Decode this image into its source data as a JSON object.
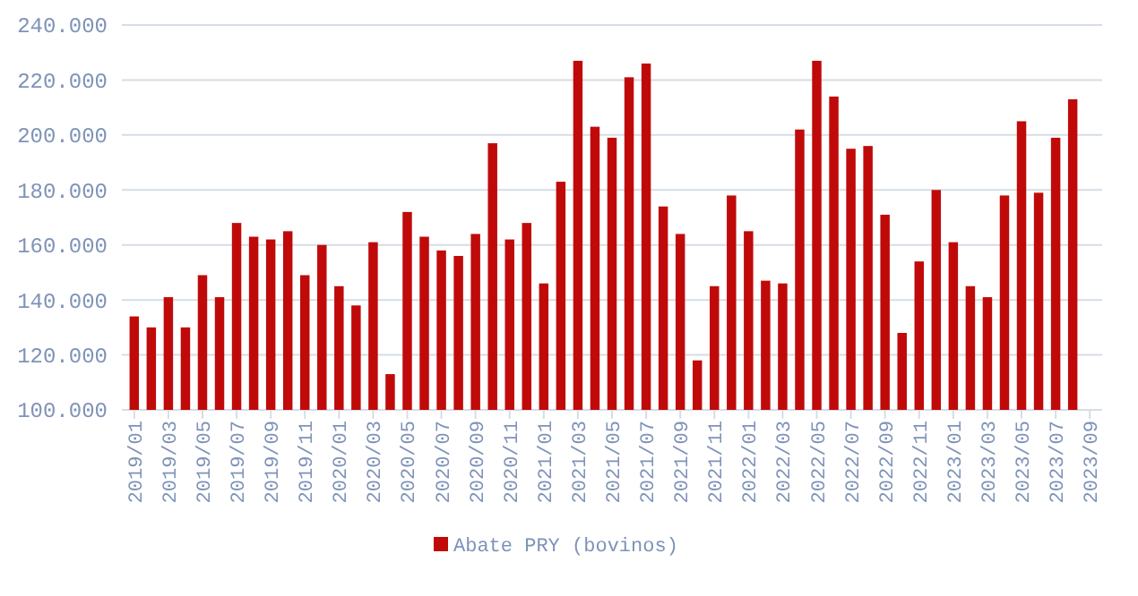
{
  "chart_data": {
    "type": "bar",
    "categories": [
      "2019/01",
      null,
      "2019/03",
      null,
      "2019/05",
      null,
      "2019/07",
      null,
      "2019/09",
      null,
      "2019/11",
      null,
      "2020/01",
      null,
      "2020/03",
      null,
      "2020/05",
      null,
      "2020/07",
      null,
      "2020/09",
      null,
      "2020/11",
      null,
      "2021/01",
      null,
      "2021/03",
      null,
      "2021/05",
      null,
      "2021/07",
      null,
      "2021/09",
      null,
      "2021/11",
      null,
      "2022/01",
      null,
      "2022/03",
      null,
      "2022/05",
      null,
      "2022/07",
      null,
      "2022/09",
      null,
      "2022/11",
      null,
      "2023/01",
      null,
      "2023/03",
      null,
      "2023/05",
      null,
      "2023/07",
      null,
      "2023/09"
    ],
    "series": [
      {
        "name": "Abate PRY (bovinos)",
        "color": "#c00a0a",
        "values": [
          134000,
          130000,
          141000,
          130000,
          149000,
          141000,
          168000,
          163000,
          162000,
          165000,
          149000,
          160000,
          145000,
          138000,
          161000,
          113000,
          172000,
          163000,
          158000,
          156000,
          164000,
          197000,
          162000,
          168000,
          146000,
          183000,
          227000,
          203000,
          199000,
          221000,
          226000,
          174000,
          164000,
          118000,
          145000,
          178000,
          165000,
          147000,
          146000,
          202000,
          227000,
          214000,
          195000,
          196000,
          171000,
          128000,
          154000,
          180000,
          161000,
          145000,
          141000,
          178000,
          205000,
          179000,
          199000,
          213000,
          null
        ]
      }
    ],
    "ylim": [
      100000,
      240000
    ],
    "yticks": [
      {
        "value": 100000,
        "label": "100.000"
      },
      {
        "value": 120000,
        "label": "120.000"
      },
      {
        "value": 140000,
        "label": "140.000"
      },
      {
        "value": 160000,
        "label": "160.000"
      },
      {
        "value": 180000,
        "label": "180.000"
      },
      {
        "value": 200000,
        "label": "200.000"
      },
      {
        "value": 220000,
        "label": "220.000"
      },
      {
        "value": 240000,
        "label": "240.000"
      }
    ],
    "grid": "y",
    "legend": "bottom"
  }
}
